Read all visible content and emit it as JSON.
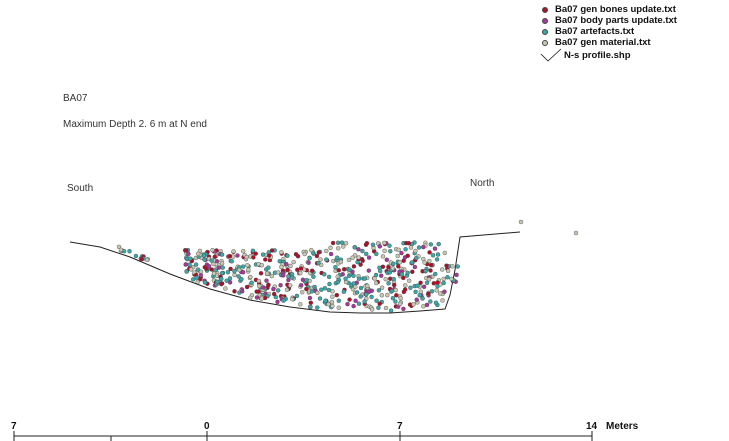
{
  "title": "BA07",
  "subtitle": "Maximum Depth 2. 6 m at N end",
  "labels": {
    "south": "South",
    "north": "North"
  },
  "legend": [
    {
      "label": "Ba07 gen bones update.txt",
      "color": "#b0102a",
      "kind": "point"
    },
    {
      "label": "Ba07 body parts update.txt",
      "color": "#a8389a",
      "kind": "point"
    },
    {
      "label": "Ba07 artefacts.txt",
      "color": "#3ca8a8",
      "kind": "point"
    },
    {
      "label": "Ba07 gen material.txt",
      "color": "#c8c8b4",
      "kind": "point"
    },
    {
      "label": "N-s profile.shp",
      "color": "#111111",
      "kind": "line"
    }
  ],
  "scale_bar": {
    "ticks": [
      "7",
      "0",
      "7",
      "14"
    ],
    "unit": "Meters"
  }
}
